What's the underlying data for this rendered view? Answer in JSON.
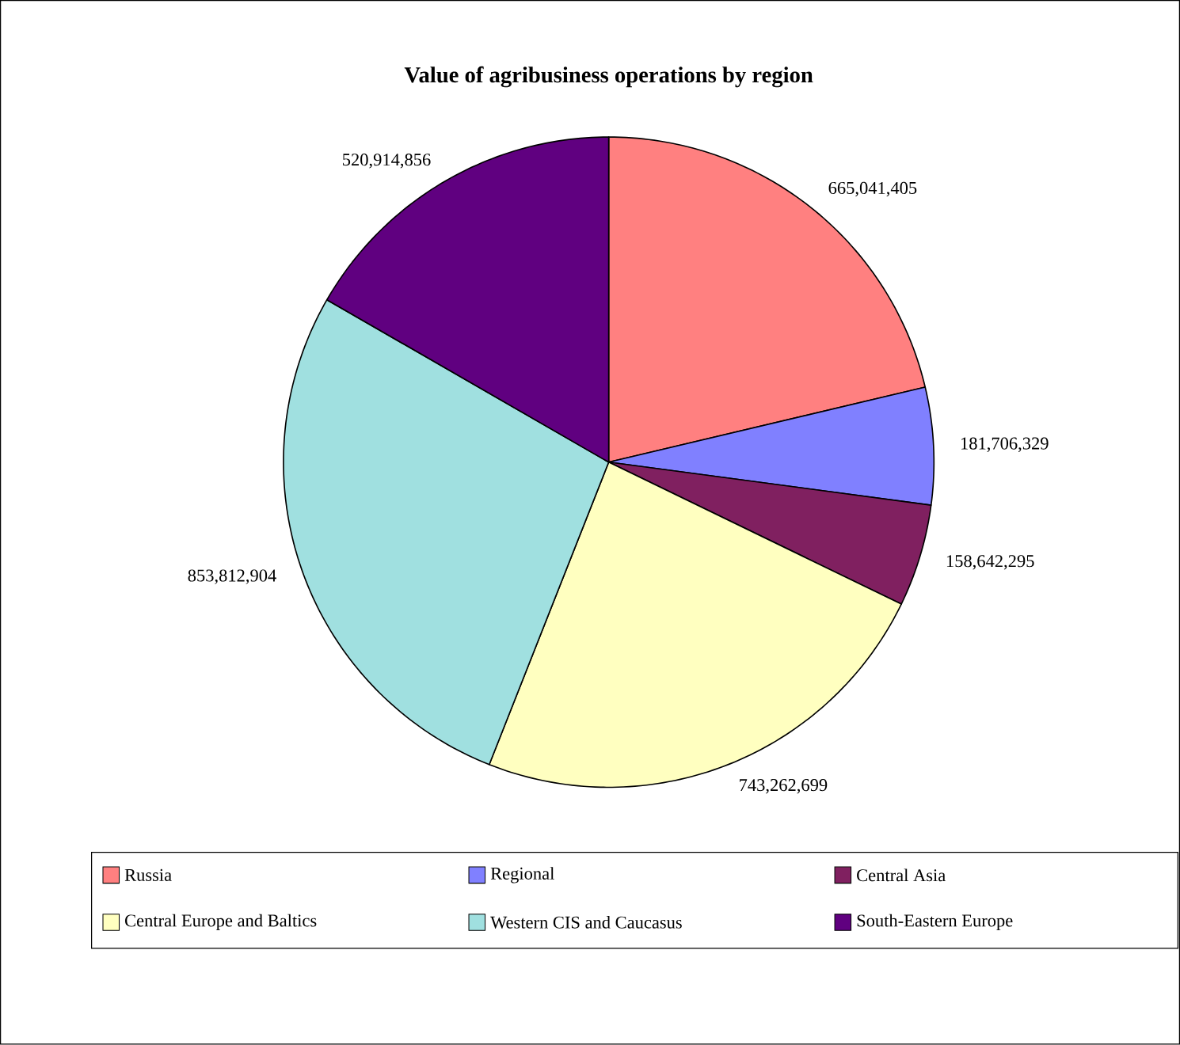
{
  "chart_data": {
    "type": "pie",
    "title": "Value of agribusiness operations by region",
    "categories": [
      "Russia",
      "Regional",
      "Central Asia",
      "Central Europe and Baltics",
      "Western CIS and Caucasus",
      "South-Eastern Europe"
    ],
    "values": [
      665041405,
      181706329,
      158642295,
      743262699,
      853812904,
      520914856
    ],
    "value_labels": [
      "665,041,405",
      "181,706,329",
      "158,642,295",
      "743,262,699",
      "853,812,904",
      "520,914,856"
    ],
    "colors": [
      "#ff8080",
      "#8080ff",
      "#802060",
      "#ffffc0",
      "#a0e0e0",
      "#600080"
    ],
    "legend": "bottom"
  }
}
